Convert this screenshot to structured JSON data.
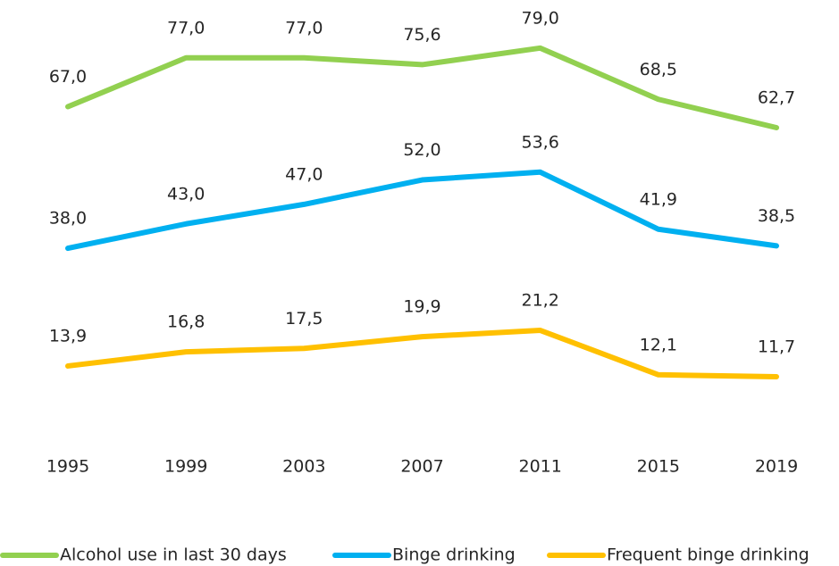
{
  "chart_data": {
    "type": "line",
    "categories": [
      "1995",
      "1999",
      "2003",
      "2007",
      "2011",
      "2015",
      "2019"
    ],
    "ylim": [
      0,
      85
    ],
    "legend": "bottom",
    "series": [
      {
        "name": "Alcohol use in last 30 days",
        "color": "#92d050",
        "values": [
          67.0,
          77.0,
          77.0,
          75.6,
          79.0,
          68.5,
          62.7
        ],
        "value_labels": [
          "67,0",
          "77,0",
          "77,0",
          "75,6",
          "79,0",
          "68,5",
          "62,7"
        ]
      },
      {
        "name": "Binge drinking",
        "color": "#00b0f0",
        "values": [
          38.0,
          43.0,
          47.0,
          52.0,
          53.6,
          41.9,
          38.5
        ],
        "value_labels": [
          "38,0",
          "43,0",
          "47,0",
          "52,0",
          "53,6",
          "41,9",
          "38,5"
        ]
      },
      {
        "name": "Frequent binge drinking",
        "color": "#ffc000",
        "values": [
          13.9,
          16.8,
          17.5,
          19.9,
          21.2,
          12.1,
          11.7
        ],
        "value_labels": [
          "13,9",
          "16,8",
          "17,5",
          "19,9",
          "21,2",
          "12,1",
          "11,7"
        ]
      }
    ]
  }
}
